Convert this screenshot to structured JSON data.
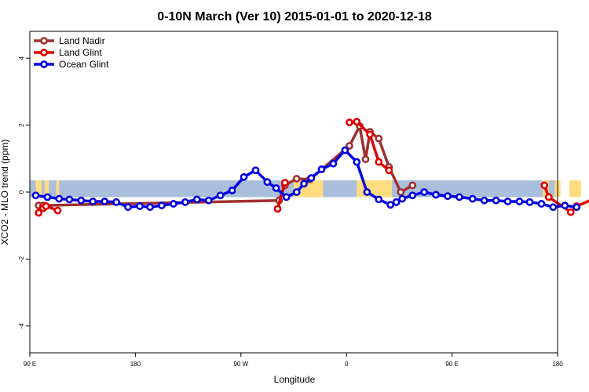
{
  "chart_data": {
    "type": "line",
    "title": "0-10N March (Ver 10)   2015-01-01 to 2020-12-18",
    "xlabel": "Longitude",
    "ylabel": "XCO2 - MLO trend (ppm)",
    "xlim": [
      90,
      450
    ],
    "ylim": [
      -4.8,
      4.8
    ],
    "x_ticks": [
      {
        "value": 90,
        "label": "90 E"
      },
      {
        "value": 180,
        "label": "180"
      },
      {
        "value": 270,
        "label": "90 W"
      },
      {
        "value": 360,
        "label": "0"
      },
      {
        "value": 450,
        "label": "90 E"
      },
      {
        "value": 540,
        "label": "180"
      }
    ],
    "y_ticks": [
      {
        "value": -4,
        "label": "-4"
      },
      {
        "value": -2,
        "label": "-2"
      },
      {
        "value": 0,
        "label": "0"
      },
      {
        "value": 2,
        "label": "2"
      },
      {
        "value": 4,
        "label": "4"
      }
    ],
    "legend_position": "top-left",
    "grid": false,
    "background_band": {
      "ymin": -0.15,
      "ymax": 0.35,
      "ocean_color": "#a9bfdc",
      "land_color": "#ffdc80"
    },
    "series": [
      {
        "name": "Land Nadir",
        "color": "#a0302f",
        "x": [
          96,
          99,
          260,
          264,
          272,
          281,
          308,
          315,
          319,
          322,
          328,
          335,
          343,
          351
        ],
        "y": [
          -0.4,
          -0.4,
          -0.25,
          0.2,
          0.4,
          0.38,
          1.38,
          1.97,
          0.98,
          1.8,
          1.6,
          0.75,
          0.0,
          0.2
        ]
      },
      {
        "name": "Land Glint",
        "color": "#e00000",
        "x": [
          96,
          99,
          101,
          109,
          259,
          264,
          308,
          313,
          322,
          328,
          335,
          441,
          444,
          459,
          463,
          475,
          482
        ],
        "y": [
          -0.62,
          -0.48,
          -0.42,
          -0.55,
          -0.5,
          0.28,
          2.08,
          2.1,
          1.72,
          0.9,
          0.65,
          0.2,
          -0.15,
          -0.6,
          -0.42,
          -0.2,
          -0.6
        ],
        "segments": [
          [
            0,
            4
          ],
          [
            4,
            6
          ],
          [
            6,
            11
          ],
          [
            11,
            17
          ]
        ]
      },
      {
        "name": "Ocean Glint",
        "color": "#0000e0",
        "x": [
          94,
          102,
          110,
          117,
          125,
          133,
          141,
          149,
          157,
          165,
          172,
          180,
          188,
          196,
          204,
          212,
          220,
          228,
          236,
          244,
          252,
          258,
          265,
          272,
          277,
          282,
          289,
          297,
          305,
          313,
          320,
          328,
          336,
          340,
          344,
          351,
          359,
          367,
          375,
          383,
          392,
          400,
          408,
          416,
          424,
          431,
          439,
          447,
          455,
          463
        ],
        "y": [
          -0.1,
          -0.15,
          -0.2,
          -0.22,
          -0.25,
          -0.28,
          -0.28,
          -0.3,
          -0.45,
          -0.42,
          -0.45,
          -0.4,
          -0.35,
          -0.3,
          -0.22,
          -0.25,
          -0.1,
          0.05,
          0.45,
          0.65,
          0.3,
          0.12,
          -0.15,
          0.0,
          0.25,
          0.42,
          0.68,
          0.85,
          1.25,
          0.9,
          0.0,
          -0.22,
          -0.38,
          -0.3,
          -0.2,
          -0.1,
          0.0,
          -0.08,
          -0.12,
          -0.15,
          -0.2,
          -0.25,
          -0.25,
          -0.28,
          -0.28,
          -0.3,
          -0.35,
          -0.45,
          -0.4,
          -0.45
        ]
      }
    ]
  }
}
